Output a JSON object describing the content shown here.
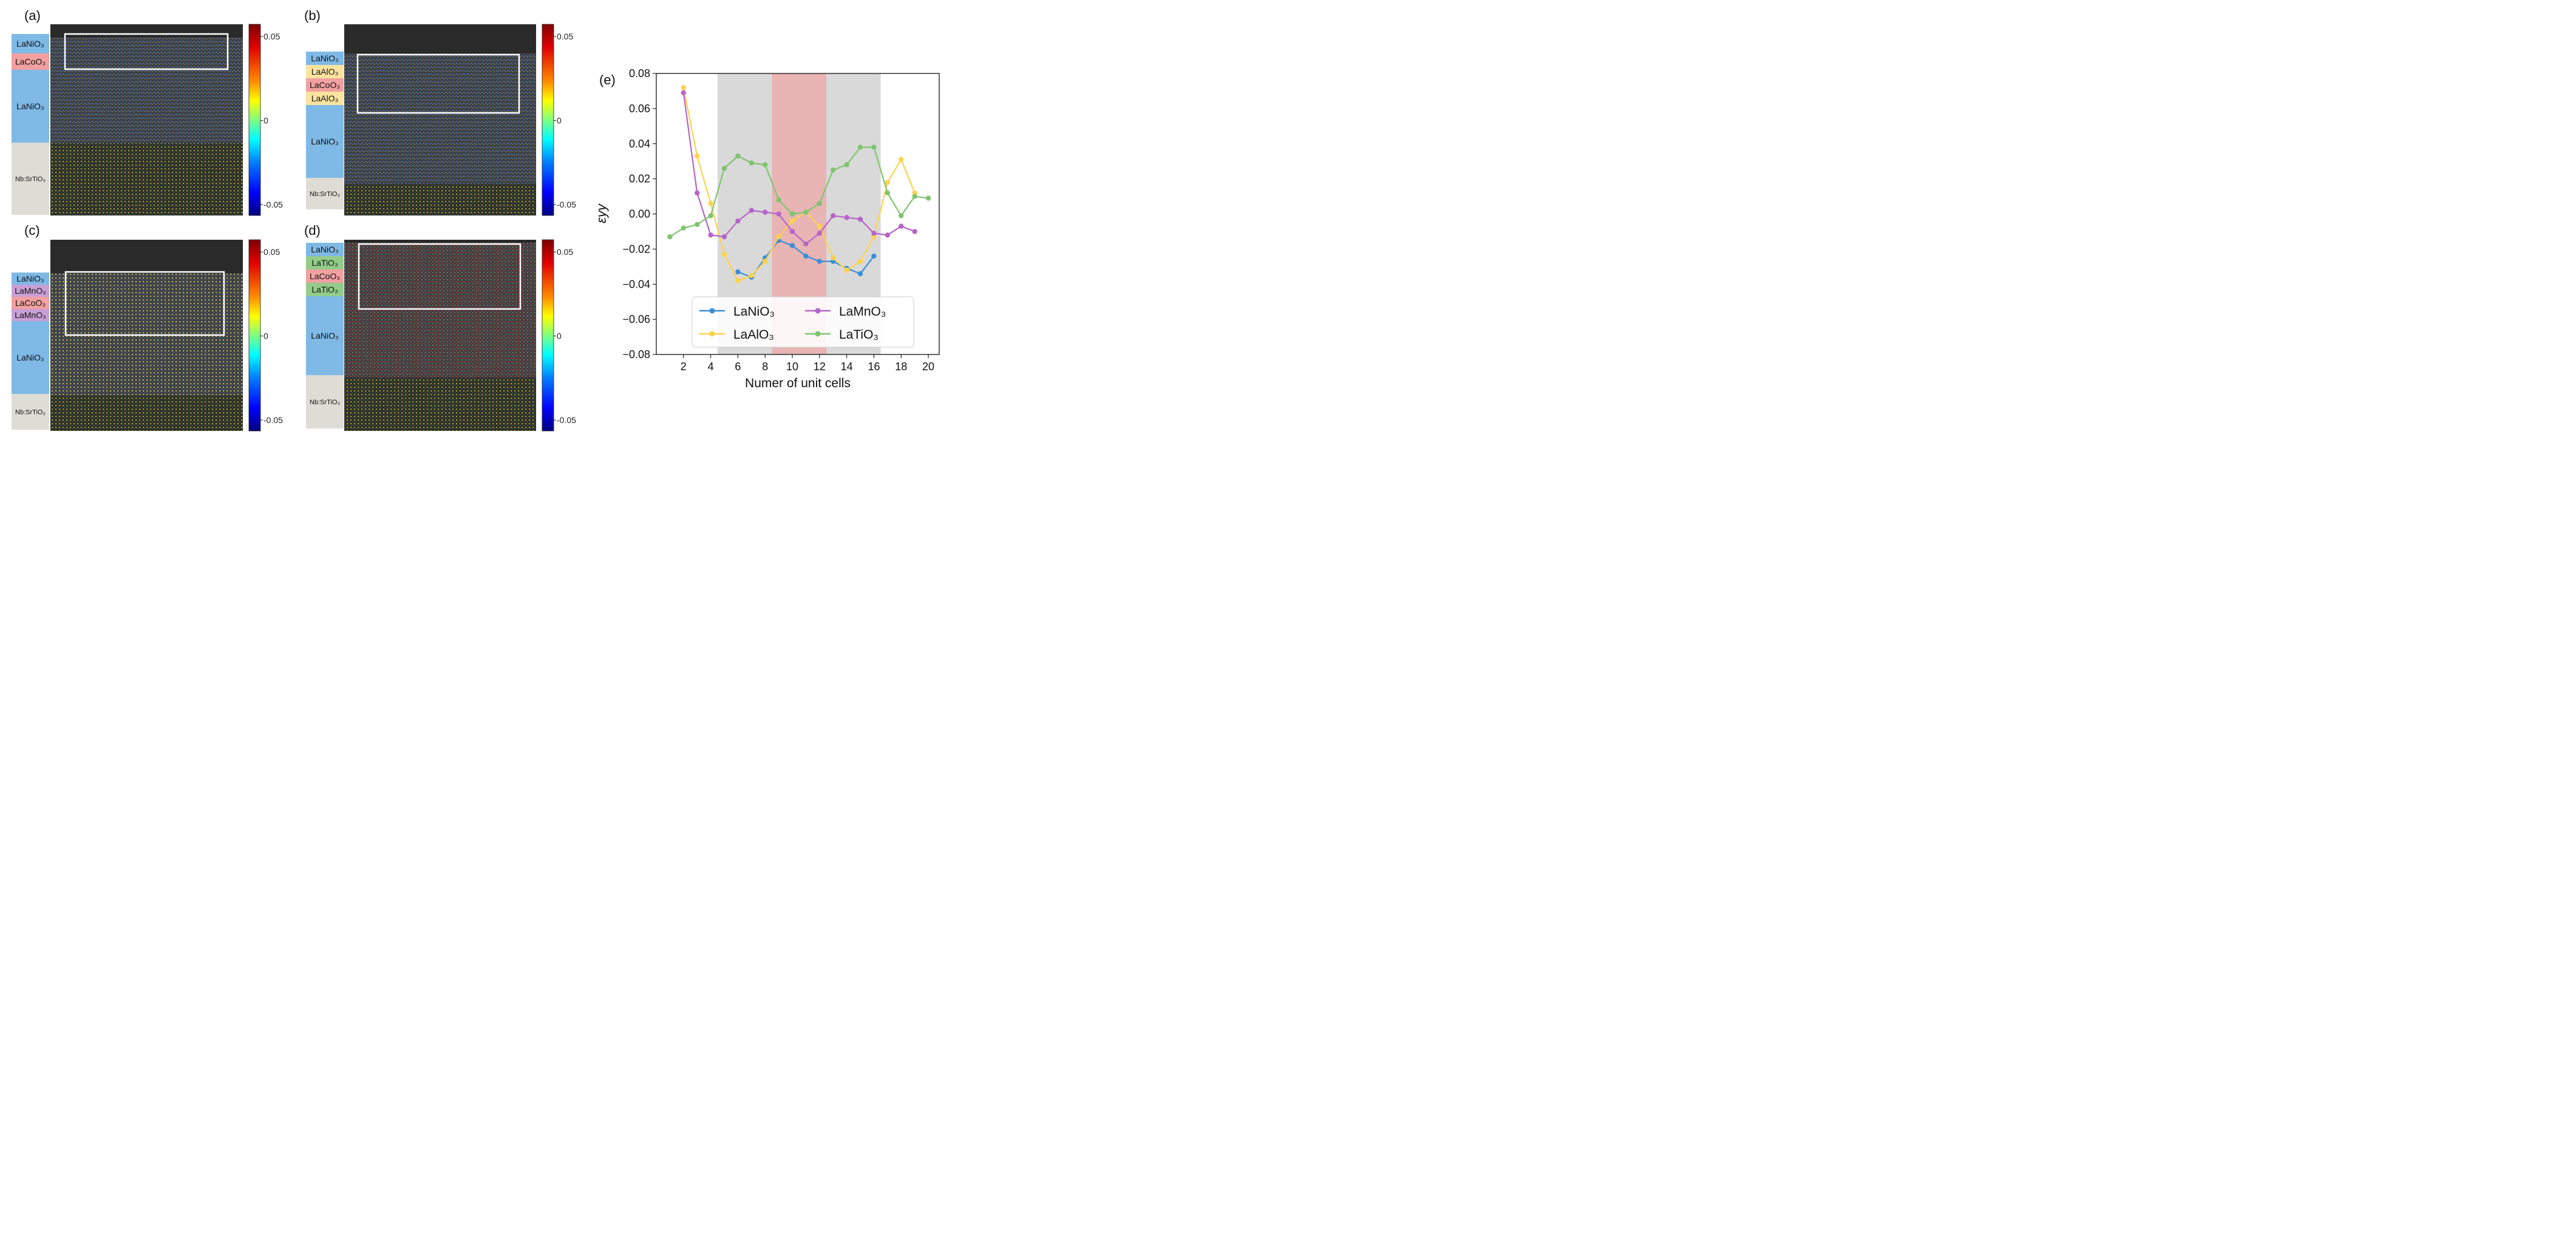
{
  "panels": [
    {
      "letter": "(a)",
      "layers": [
        {
          "label": "LaNiO₃",
          "color": "#7fb9e6"
        },
        {
          "label": "LaCoO₃",
          "color": "#f2a0a0"
        },
        {
          "label": "LaNiO₃",
          "color": "#7fb9e6"
        },
        {
          "label": "Nb:SrTiO₃",
          "color": "#dddcd5"
        }
      ],
      "colorbar_ticks": [
        "0.05",
        "0",
        "-0.05"
      ]
    },
    {
      "letter": "(b)",
      "layers": [
        {
          "label": "LaNiO₃",
          "color": "#7fb9e6"
        },
        {
          "label": "LaAlO₃",
          "color": "#fbe3a0"
        },
        {
          "label": "LaCoO₃",
          "color": "#f2a0a0"
        },
        {
          "label": "LaAlO₃",
          "color": "#fbe3a0"
        },
        {
          "label": "LaNiO₃",
          "color": "#7fb9e6"
        },
        {
          "label": "Nb:SrTiO₃",
          "color": "#dddcd5"
        }
      ],
      "colorbar_ticks": [
        "0.05",
        "0",
        "-0.05"
      ]
    },
    {
      "letter": "(c)",
      "layers": [
        {
          "label": "LaNiO₃",
          "color": "#7fb9e6"
        },
        {
          "label": "LaMnO₃",
          "color": "#c9a0d6"
        },
        {
          "label": "LaCoO₃",
          "color": "#f2a0a0"
        },
        {
          "label": "LaMnO₃",
          "color": "#c9a0d6"
        },
        {
          "label": "LaNiO₃",
          "color": "#7fb9e6"
        },
        {
          "label": "Nb:SrTiO₃",
          "color": "#dddcd5"
        }
      ],
      "colorbar_ticks": [
        "0.05",
        "0",
        "-0.05"
      ]
    },
    {
      "letter": "(d)",
      "layers": [
        {
          "label": "LaNiO₃",
          "color": "#7fb9e6"
        },
        {
          "label": "LaTiO₃",
          "color": "#93cc88"
        },
        {
          "label": "LaCoO₃",
          "color": "#f2a0a0"
        },
        {
          "label": "LaTiO₃",
          "color": "#93cc88"
        },
        {
          "label": "LaNiO₃",
          "color": "#7fb9e6"
        },
        {
          "label": "Nb:SrTiO₃",
          "color": "#dddcd5"
        }
      ],
      "colorbar_ticks": [
        "0.05",
        "0",
        "-0.05"
      ]
    }
  ],
  "chart_data": {
    "type": "line",
    "panel_label": "(e)",
    "title": "",
    "xlabel": "Numer of unit cells",
    "ylabel": "εyy",
    "xlim": [
      0,
      20.8
    ],
    "ylim": [
      -0.08,
      0.08
    ],
    "xticks": [
      2,
      4,
      6,
      8,
      10,
      12,
      14,
      16,
      18,
      20
    ],
    "yticks": [
      0.08,
      0.06,
      0.04,
      0.02,
      0.0,
      -0.02,
      -0.04,
      -0.06,
      -0.08
    ],
    "ytick_labels": [
      "0.08",
      "0.06",
      "0.04",
      "0.02",
      "0.00",
      "−0.02",
      "−0.04",
      "−0.06",
      "−0.08"
    ],
    "grid": false,
    "legend_position": "bottom-center",
    "shaded_regions": [
      {
        "x_start": 4.5,
        "x_end": 8.5,
        "color": "#d9d9d9"
      },
      {
        "x_start": 8.5,
        "x_end": 12.5,
        "color": "#e8b4b4"
      },
      {
        "x_start": 12.5,
        "x_end": 16.5,
        "color": "#d9d9d9"
      }
    ],
    "series": [
      {
        "name": "LaNiO₃",
        "color": "#3a8fd6",
        "x": [
          6,
          7,
          8,
          9,
          10,
          11,
          12,
          13,
          14,
          15,
          16
        ],
        "y": [
          -0.033,
          -0.036,
          -0.025,
          -0.015,
          -0.018,
          -0.024,
          -0.027,
          -0.027,
          -0.031,
          -0.034,
          -0.024
        ]
      },
      {
        "name": "LaAlO₃",
        "color": "#fcd34d",
        "x": [
          2,
          3,
          4,
          5,
          6,
          7,
          8,
          9,
          10,
          11,
          12,
          13,
          14,
          15,
          16,
          17,
          18,
          19
        ],
        "y": [
          0.072,
          0.033,
          0.006,
          -0.023,
          -0.038,
          -0.035,
          -0.027,
          -0.013,
          -0.004,
          0.001,
          -0.007,
          -0.025,
          -0.032,
          -0.027,
          -0.013,
          0.018,
          0.031,
          0.012
        ]
      },
      {
        "name": "LaMnO₃",
        "color": "#b565c9",
        "x": [
          2,
          3,
          4,
          5,
          6,
          7,
          8,
          9,
          10,
          11,
          12,
          13,
          14,
          15,
          16,
          17,
          18,
          19
        ],
        "y": [
          0.069,
          0.012,
          -0.012,
          -0.013,
          -0.004,
          0.002,
          0.001,
          0.0,
          -0.01,
          -0.017,
          -0.011,
          -0.001,
          -0.002,
          -0.003,
          -0.011,
          -0.012,
          -0.007,
          -0.01
        ]
      },
      {
        "name": "LaTiO₃",
        "color": "#7fc46f",
        "x": [
          1,
          2,
          3,
          4,
          5,
          6,
          7,
          8,
          9,
          10,
          11,
          12,
          13,
          14,
          15,
          16,
          17,
          18,
          19,
          20
        ],
        "y": [
          -0.013,
          -0.008,
          -0.006,
          -0.001,
          0.026,
          0.033,
          0.029,
          0.028,
          0.008,
          0.0,
          0.001,
          0.006,
          0.025,
          0.028,
          0.038,
          0.038,
          0.012,
          -0.001,
          0.01,
          0.009
        ]
      }
    ]
  }
}
